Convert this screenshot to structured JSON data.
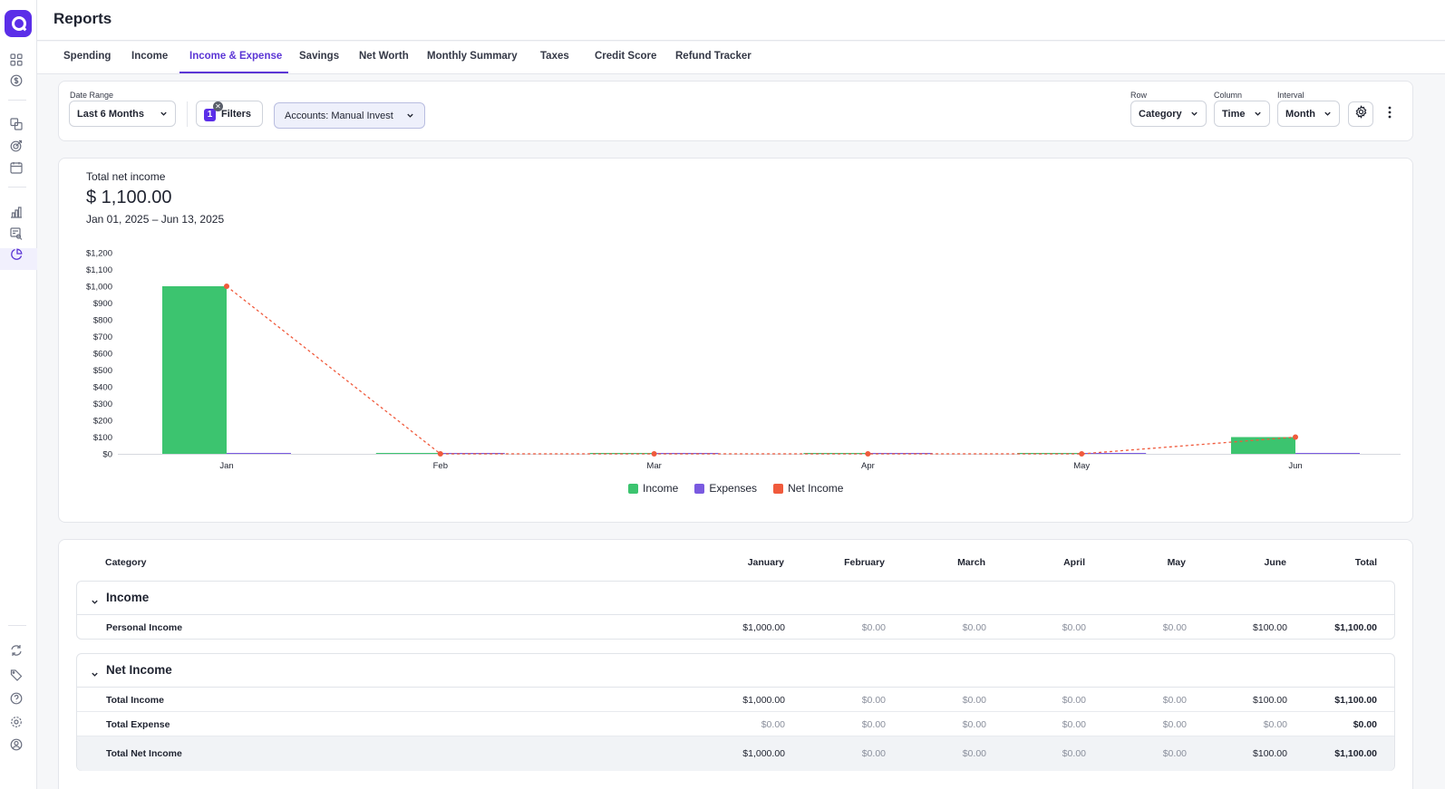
{
  "header": {
    "title": "Reports"
  },
  "tabs": [
    {
      "label": "Spending",
      "active": false
    },
    {
      "label": "Income",
      "active": false
    },
    {
      "label": "Income & Expense",
      "active": true
    },
    {
      "label": "Savings",
      "active": false
    },
    {
      "label": "Net Worth",
      "active": false
    },
    {
      "label": "Monthly Summary",
      "active": false
    },
    {
      "label": "Taxes",
      "active": false
    },
    {
      "label": "Credit Score",
      "active": false
    },
    {
      "label": "Refund Tracker",
      "active": false
    }
  ],
  "controls": {
    "date_range_label": "Date Range",
    "date_range_value": "Last 6 Months",
    "filters_count": "1",
    "filters_label": "Filters",
    "accounts_chip": "Accounts: Manual Invest",
    "row_label": "Row",
    "row_value": "Category",
    "column_label": "Column",
    "column_value": "Time",
    "interval_label": "Interval",
    "interval_value": "Month"
  },
  "summary": {
    "label": "Total net income",
    "value": "$ 1,100.00",
    "range": "Jan 01, 2025 – Jun 13, 2025"
  },
  "colors": {
    "accent": "#5b35d5",
    "income": "#3cc46f",
    "expenses": "#7a5ae0",
    "net_income": "#f05a3c"
  },
  "chart_data": {
    "type": "bar",
    "categories": [
      "Jan",
      "Feb",
      "Mar",
      "Apr",
      "May",
      "Jun"
    ],
    "series": [
      {
        "name": "Income",
        "kind": "bar",
        "color": "#3cc46f",
        "values": [
          1000,
          0,
          0,
          0,
          0,
          100
        ]
      },
      {
        "name": "Expenses",
        "kind": "bar",
        "color": "#7a5ae0",
        "values": [
          0,
          0,
          0,
          0,
          0,
          0
        ]
      },
      {
        "name": "Net Income",
        "kind": "line",
        "style": "dashed",
        "color": "#f05a3c",
        "values": [
          1000,
          0,
          0,
          0,
          0,
          100
        ]
      }
    ],
    "yticks": [
      "$0",
      "$100",
      "$200",
      "$300",
      "$400",
      "$500",
      "$600",
      "$700",
      "$800",
      "$900",
      "$1,000",
      "$1,100",
      "$1,200"
    ],
    "ylim": [
      0,
      1200
    ],
    "legend_position": "bottom-center",
    "grid": false
  },
  "table": {
    "headers": [
      "Category",
      "January",
      "February",
      "March",
      "April",
      "May",
      "June",
      "Total"
    ],
    "groups": [
      {
        "title": "Income",
        "rows": [
          {
            "name": "Personal Income",
            "values": [
              "$1,000.00",
              "$0.00",
              "$0.00",
              "$0.00",
              "$0.00",
              "$100.00"
            ],
            "total": "$1,100.00"
          }
        ]
      },
      {
        "title": "Net Income",
        "rows": [
          {
            "name": "Total Income",
            "values": [
              "$1,000.00",
              "$0.00",
              "$0.00",
              "$0.00",
              "$0.00",
              "$100.00"
            ],
            "total": "$1,100.00"
          },
          {
            "name": "Total Expense",
            "values": [
              "$0.00",
              "$0.00",
              "$0.00",
              "$0.00",
              "$0.00",
              "$0.00"
            ],
            "total": "$0.00"
          },
          {
            "name": "Total Net Income",
            "values": [
              "$1,000.00",
              "$0.00",
              "$0.00",
              "$0.00",
              "$0.00",
              "$100.00"
            ],
            "total": "$1,100.00"
          }
        ]
      }
    ]
  },
  "icons": {
    "sidebar": [
      "dashboard-icon",
      "dollar-icon",
      "transactions-icon",
      "goals-icon",
      "calendar-icon",
      "bar-chart-icon",
      "search-report-icon",
      "pie-chart-icon",
      "sync-icon",
      "tag-icon",
      "help-icon",
      "settings-icon",
      "profile-icon"
    ]
  }
}
